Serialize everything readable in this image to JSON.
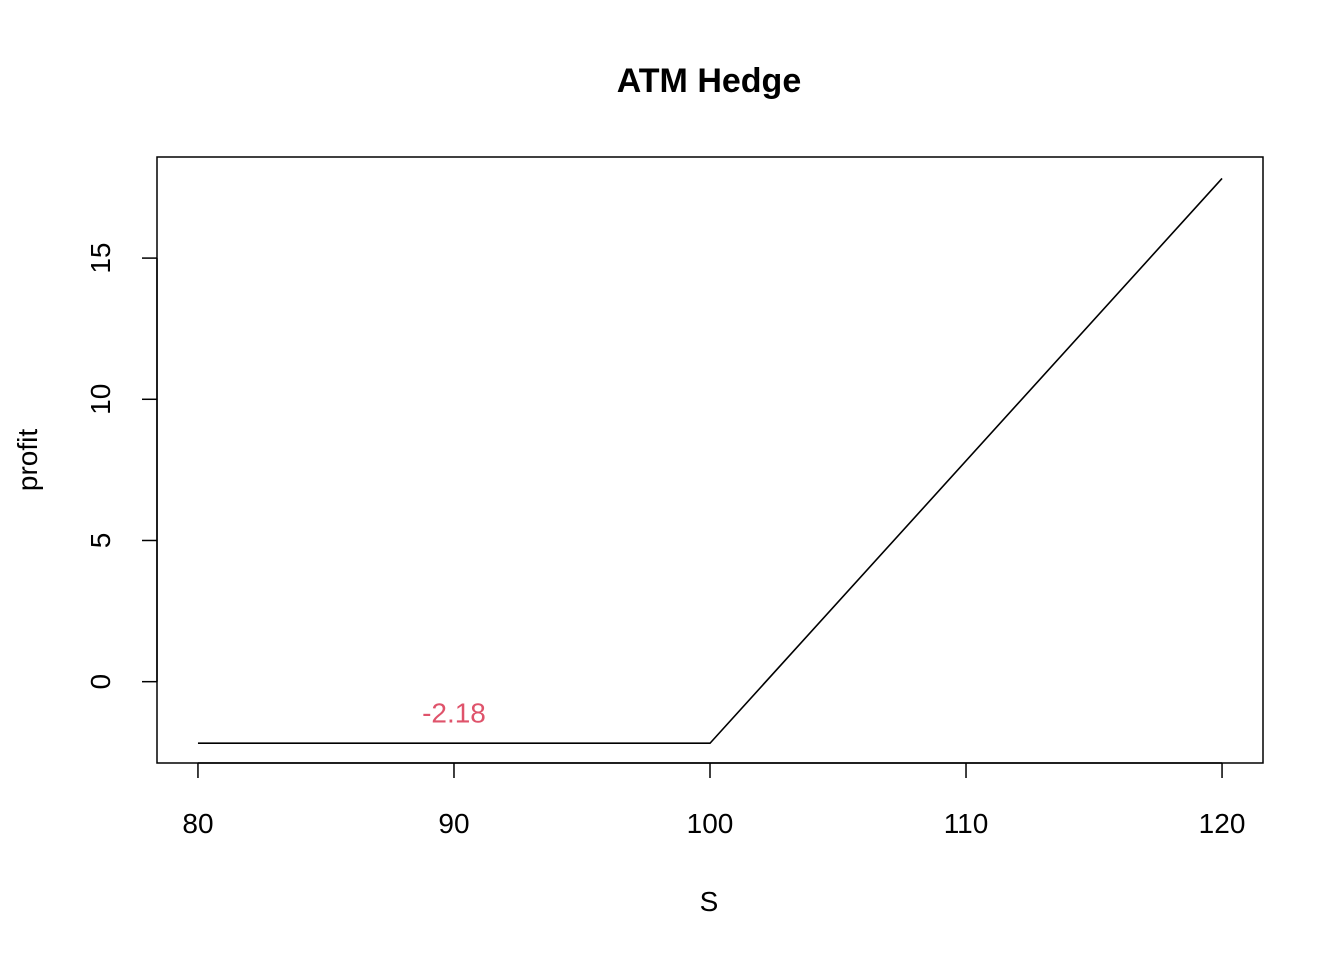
{
  "chart_data": {
    "type": "line",
    "title": "ATM Hedge",
    "xlabel": "S",
    "ylabel": "profit",
    "xlim": [
      78.4,
      121.6
    ],
    "ylim": [
      -2.88,
      18.58
    ],
    "x_ticks": [
      80,
      90,
      100,
      110,
      120
    ],
    "y_ticks": [
      0,
      5,
      10,
      15
    ],
    "grid": false,
    "series": [
      {
        "x": [
          80,
          100,
          120
        ],
        "y": [
          -2.18,
          -2.18,
          17.82
        ],
        "color": "#000000"
      }
    ],
    "annotations": [
      {
        "text": "-2.18",
        "x": 90,
        "y": -1.1,
        "color": "#DF536B"
      }
    ]
  }
}
